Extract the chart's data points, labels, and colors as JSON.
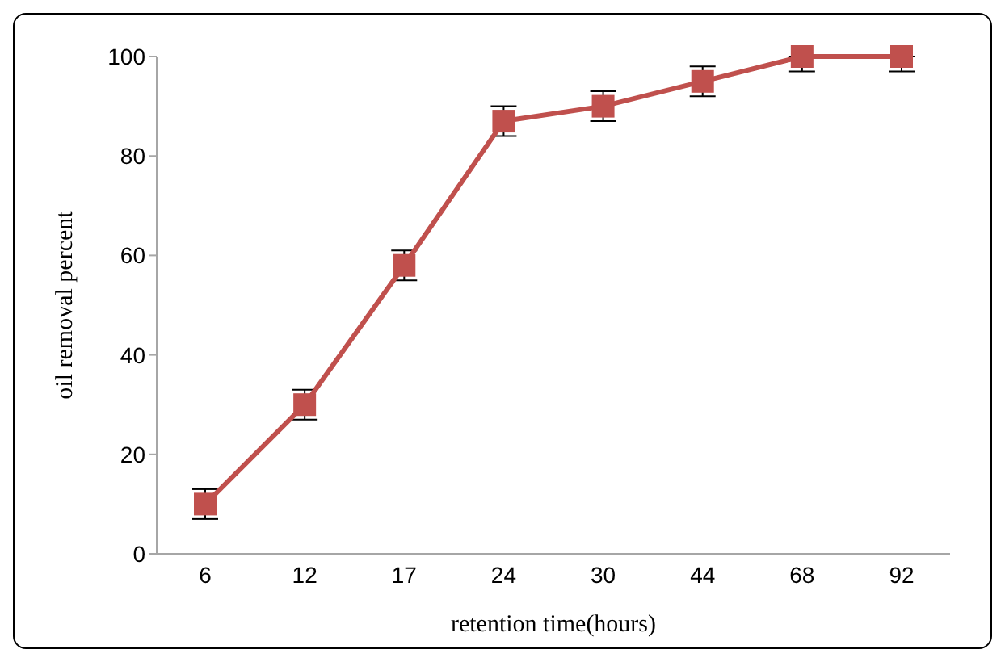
{
  "chart_data": {
    "type": "line",
    "xlabel": "retention time(hours)",
    "ylabel": "oil removal percent",
    "categories": [
      "6",
      "12",
      "17",
      "24",
      "30",
      "44",
      "68",
      "92"
    ],
    "series": [
      {
        "color": "#c0504d",
        "values": [
          10,
          30,
          58,
          87,
          90,
          95,
          100,
          100
        ],
        "errors": [
          3,
          3,
          3,
          3,
          3,
          3,
          [
            97,
            100
          ],
          [
            97,
            100
          ]
        ]
      }
    ],
    "ylim": [
      0,
      100
    ],
    "yticks": [
      0,
      20,
      40,
      60,
      80,
      100
    ],
    "grid": false,
    "legend": false,
    "marker": "square",
    "line_style": "solid"
  }
}
